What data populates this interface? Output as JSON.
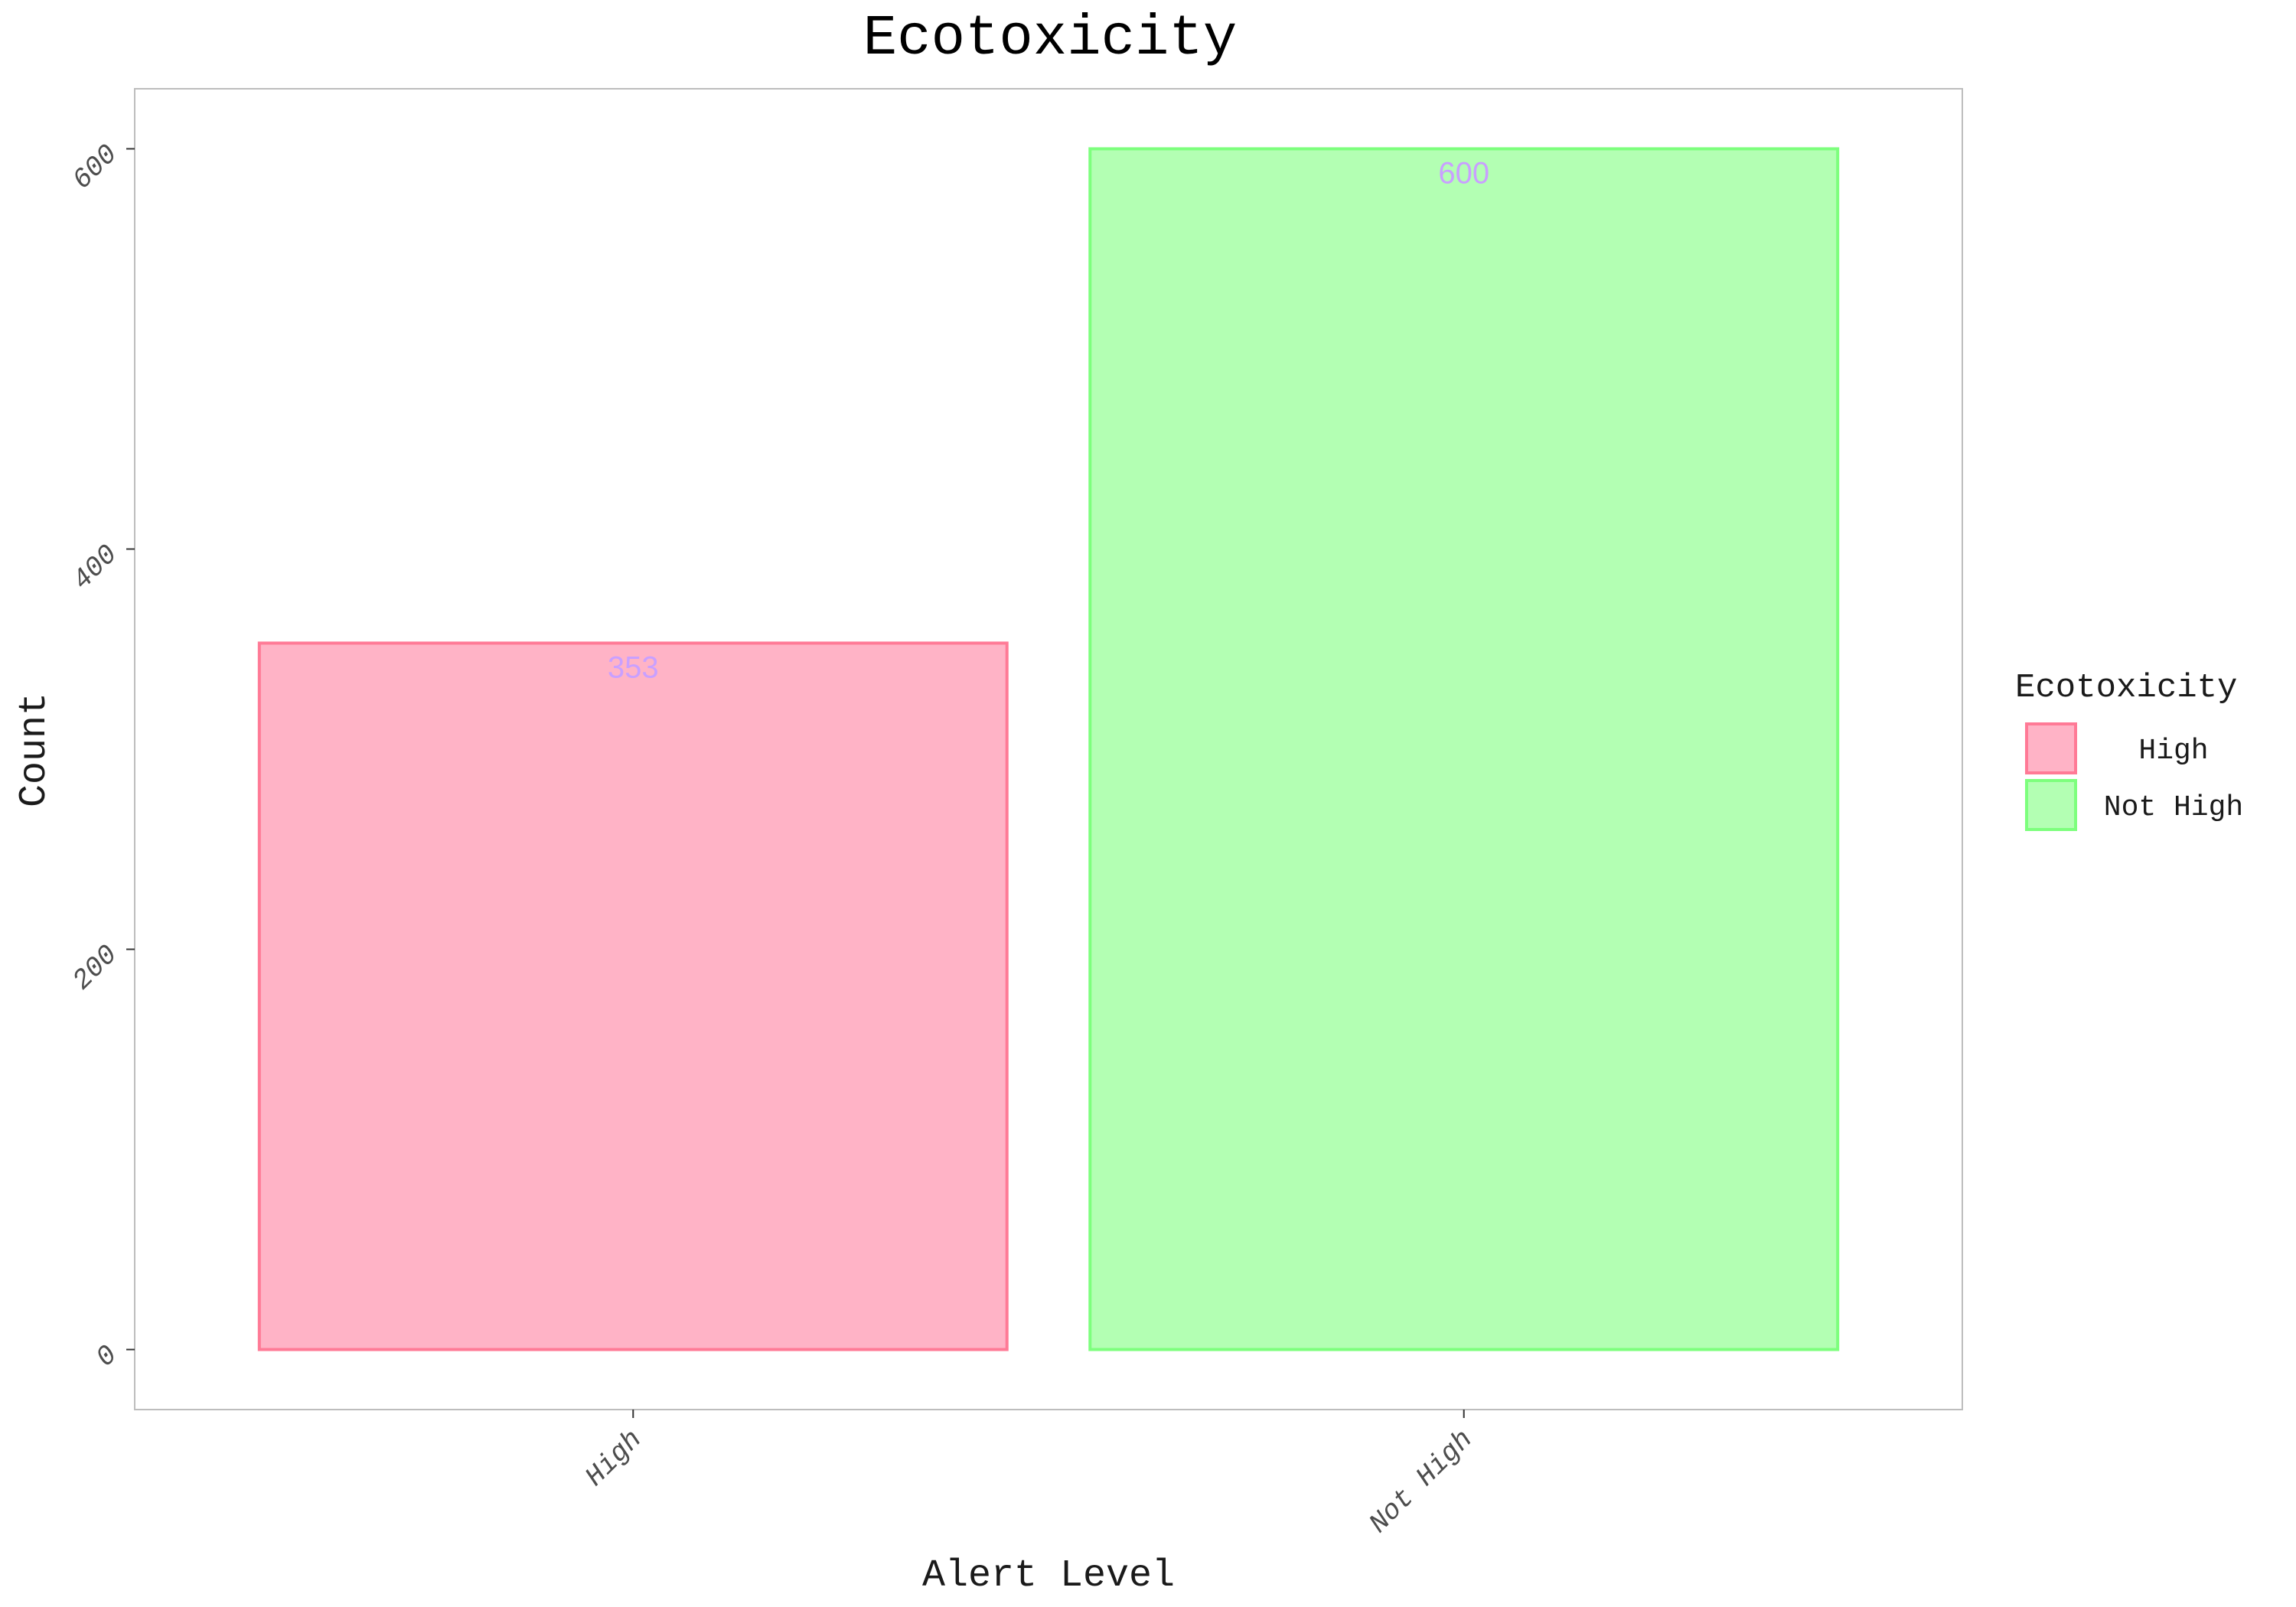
{
  "chart_data": {
    "type": "bar",
    "title": "Ecotoxicity",
    "xlabel": "Alert Level",
    "ylabel": "Count",
    "categories": [
      "High",
      "Not High"
    ],
    "values": [
      353,
      600
    ],
    "data_labels": [
      "353",
      "600"
    ],
    "ylim": [
      -30,
      630
    ],
    "yticks": [
      0,
      200,
      400,
      600
    ],
    "ytick_labels": [
      "0",
      "200",
      "400",
      "600"
    ],
    "grid": false,
    "legend": {
      "title": "Ecotoxicity",
      "position": "right",
      "entries": [
        "High",
        "Not High"
      ]
    },
    "colors": {
      "fills": [
        "#ffb3c6",
        "#b3ffb3"
      ],
      "strokes": [
        "#ff7a96",
        "#7dff7d"
      ],
      "data_label": "#c9a0ff",
      "panel_border": "#bdbdbd",
      "axis_text": "#4d4d4d"
    }
  }
}
